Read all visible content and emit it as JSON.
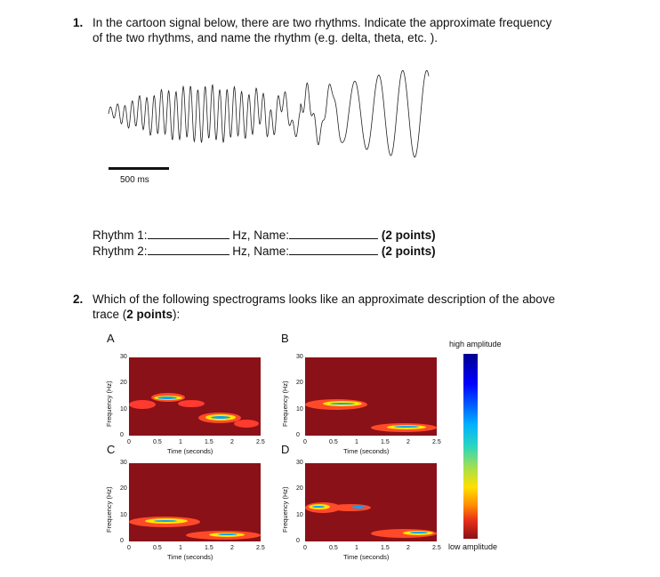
{
  "question1": {
    "number": "1.",
    "line1": "In the cartoon signal below, there are two rhythms. Indicate the approximate frequency",
    "line2": "of the two rhythms, and name the rhythm (e.g. delta, theta, etc. )."
  },
  "scale_bar_label": "500 ms",
  "rhythm_rows": [
    {
      "label": "Rhythm 1:",
      "hz": "Hz, Name:",
      "points": "(2 points)"
    },
    {
      "label": "Rhythm 2:",
      "hz": "Hz, Name:",
      "points": "(2 points)"
    }
  ],
  "question2": {
    "number": "2.",
    "line1": "Which of the following spectrograms looks like an approximate description of the above",
    "line2_prefix": "trace (",
    "line2_bold": "2 points",
    "line2_suffix": "):"
  },
  "panels": [
    {
      "letter": "A"
    },
    {
      "letter": "B"
    },
    {
      "letter": "C"
    },
    {
      "letter": "D"
    }
  ],
  "spectrogram_axes": {
    "ylabel": "Frequency (Hz)",
    "xlabel": "Time (seconds)",
    "yticks": [
      "30",
      "20",
      "10",
      "0"
    ],
    "xticks": [
      "0",
      "0.5",
      "1",
      "1.5",
      "2",
      "2.5"
    ]
  },
  "colorbar": {
    "high_label": "high amplitude",
    "low_label": "low amplitude"
  }
}
